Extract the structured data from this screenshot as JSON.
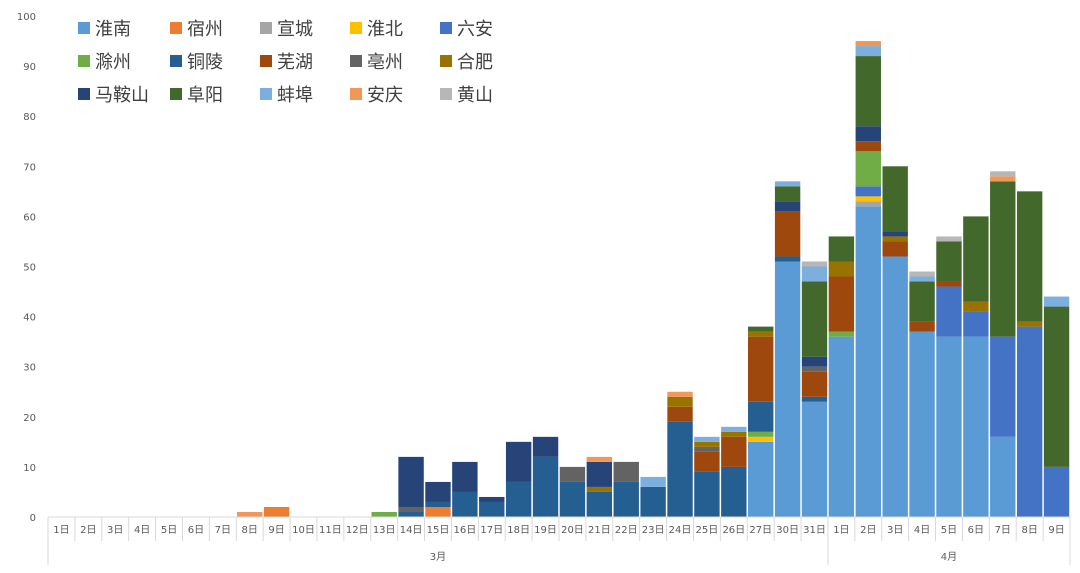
{
  "chart_data": {
    "type": "bar",
    "stacked": true,
    "title": "",
    "xlabel": "",
    "ylabel": "",
    "ylim": [
      0,
      100
    ],
    "yticks": [
      0,
      10,
      20,
      30,
      40,
      50,
      60,
      70,
      80,
      90,
      100
    ],
    "grid": false,
    "legend": "top-left",
    "categories": [
      "1日",
      "2日",
      "3日",
      "4日",
      "5日",
      "6日",
      "7日",
      "8日",
      "9日",
      "10日",
      "11日",
      "12日",
      "13日",
      "14日",
      "15日",
      "16日",
      "17日",
      "18日",
      "19日",
      "20日",
      "21日",
      "22日",
      "23日",
      "24日",
      "25日",
      "26日",
      "27日",
      "30日",
      "31日",
      "1日",
      "2日",
      "3日",
      "4日",
      "5日",
      "6日",
      "7日",
      "8日",
      "9日"
    ],
    "groups": [
      {
        "label": "3月",
        "count": 29
      },
      {
        "label": "4月",
        "count": 9
      }
    ],
    "series": [
      {
        "name": "淮南",
        "color": "#5B9BD5",
        "values": [
          0,
          0,
          0,
          0,
          0,
          0,
          0,
          0,
          0,
          0,
          0,
          0,
          0,
          0,
          0,
          0,
          0,
          0,
          0,
          0,
          0,
          0,
          0,
          0,
          0,
          0,
          15,
          51,
          23,
          36,
          62,
          52,
          37,
          36,
          36,
          16,
          0,
          0
        ]
      },
      {
        "name": "宿州",
        "color": "#ED7D31",
        "values": [
          0,
          0,
          0,
          0,
          0,
          0,
          0,
          0,
          2,
          0,
          0,
          0,
          0,
          0,
          2,
          0,
          0,
          0,
          0,
          0,
          0,
          0,
          0,
          0,
          0,
          0,
          0,
          0,
          0,
          0,
          0,
          0,
          0,
          0,
          0,
          0,
          0,
          0
        ]
      },
      {
        "name": "宣城",
        "color": "#A5A5A5",
        "values": [
          0,
          0,
          0,
          0,
          0,
          0,
          0,
          0,
          0,
          0,
          0,
          0,
          0,
          0,
          0,
          0,
          0,
          0,
          0,
          0,
          0,
          0,
          0,
          0,
          0,
          0,
          0,
          0,
          0,
          0,
          1,
          0,
          0,
          0,
          0,
          0,
          0,
          0
        ]
      },
      {
        "name": "淮北",
        "color": "#FFC000",
        "values": [
          0,
          0,
          0,
          0,
          0,
          0,
          0,
          0,
          0,
          0,
          0,
          0,
          0,
          0,
          0,
          0,
          0,
          0,
          0,
          0,
          0,
          0,
          0,
          0,
          0,
          0,
          1,
          0,
          0,
          0,
          1,
          0,
          0,
          0,
          0,
          0,
          0,
          0
        ]
      },
      {
        "name": "六安",
        "color": "#4472C4",
        "values": [
          0,
          0,
          0,
          0,
          0,
          0,
          0,
          0,
          0,
          0,
          0,
          0,
          0,
          0,
          0,
          0,
          0,
          0,
          0,
          0,
          0,
          0,
          0,
          0,
          0,
          0,
          0,
          0,
          0,
          0,
          2,
          0,
          0,
          10,
          5,
          20,
          38,
          10
        ]
      },
      {
        "name": "滁州",
        "color": "#70AD47",
        "values": [
          0,
          0,
          0,
          0,
          0,
          0,
          0,
          0,
          0,
          0,
          0,
          0,
          1,
          0,
          0,
          0,
          0,
          0,
          0,
          0,
          0,
          0,
          0,
          0,
          0,
          0,
          1,
          0,
          0,
          1,
          7,
          0,
          0,
          0,
          0,
          0,
          0,
          0
        ]
      },
      {
        "name": "铜陵",
        "color": "#255E91",
        "values": [
          0,
          0,
          0,
          0,
          0,
          0,
          0,
          0,
          0,
          0,
          0,
          0,
          0,
          1,
          1,
          5,
          3,
          7,
          12,
          7,
          5,
          7,
          6,
          19,
          9,
          10,
          6,
          1,
          1,
          0,
          0,
          0,
          0,
          0,
          0,
          0,
          0,
          0
        ]
      },
      {
        "name": "芜湖",
        "color": "#9E480E",
        "values": [
          0,
          0,
          0,
          0,
          0,
          0,
          0,
          0,
          0,
          0,
          0,
          0,
          0,
          0,
          0,
          0,
          0,
          0,
          0,
          0,
          0,
          0,
          0,
          3,
          4,
          6,
          13,
          9,
          5,
          11,
          2,
          3,
          2,
          1,
          0,
          0,
          0,
          0
        ]
      },
      {
        "name": "亳州",
        "color": "#636363",
        "values": [
          0,
          0,
          0,
          0,
          0,
          0,
          0,
          0,
          0,
          0,
          0,
          0,
          0,
          1,
          0,
          0,
          0,
          0,
          0,
          3,
          0,
          4,
          0,
          0,
          1,
          0,
          0,
          0,
          1,
          0,
          0,
          0,
          0,
          0,
          0,
          0,
          0,
          0
        ]
      },
      {
        "name": "合肥",
        "color": "#997300",
        "values": [
          0,
          0,
          0,
          0,
          0,
          0,
          0,
          0,
          0,
          0,
          0,
          0,
          0,
          0,
          0,
          0,
          0,
          0,
          0,
          0,
          1,
          0,
          0,
          2,
          1,
          1,
          1,
          0,
          0,
          3,
          0,
          1,
          0,
          0,
          2,
          0,
          1,
          0
        ]
      },
      {
        "name": "马鞍山",
        "color": "#264478",
        "values": [
          0,
          0,
          0,
          0,
          0,
          0,
          0,
          0,
          0,
          0,
          0,
          0,
          0,
          10,
          4,
          6,
          1,
          8,
          4,
          0,
          5,
          0,
          0,
          0,
          0,
          0,
          0,
          2,
          2,
          0,
          3,
          1,
          0,
          0,
          0,
          0,
          0,
          0
        ]
      },
      {
        "name": "阜阳",
        "color": "#43682B",
        "values": [
          0,
          0,
          0,
          0,
          0,
          0,
          0,
          0,
          0,
          0,
          0,
          0,
          0,
          0,
          0,
          0,
          0,
          0,
          0,
          0,
          0,
          0,
          0,
          0,
          0,
          0,
          1,
          3,
          15,
          5,
          14,
          13,
          8,
          8,
          17,
          31,
          26,
          32
        ]
      },
      {
        "name": "蚌埠",
        "color": "#7CAFDD",
        "values": [
          0,
          0,
          0,
          0,
          0,
          0,
          0,
          0,
          0,
          0,
          0,
          0,
          0,
          0,
          0,
          0,
          0,
          0,
          0,
          0,
          0,
          0,
          2,
          0,
          1,
          1,
          0,
          1,
          3,
          0,
          2,
          0,
          1,
          0,
          0,
          0,
          0,
          2
        ]
      },
      {
        "name": "安庆",
        "color": "#F1975A",
        "values": [
          0,
          0,
          0,
          0,
          0,
          0,
          0,
          1,
          0,
          0,
          0,
          0,
          0,
          0,
          0,
          0,
          0,
          0,
          0,
          0,
          1,
          0,
          0,
          1,
          0,
          0,
          0,
          0,
          0,
          0,
          1,
          0,
          0,
          0,
          0,
          1,
          0,
          0
        ]
      },
      {
        "name": "黄山",
        "color": "#B7B7B7",
        "values": [
          0,
          0,
          0,
          0,
          0,
          0,
          0,
          0,
          0,
          0,
          0,
          0,
          0,
          0,
          0,
          0,
          0,
          0,
          0,
          0,
          0,
          0,
          0,
          0,
          0,
          0,
          0,
          0,
          1,
          0,
          0,
          0,
          1,
          1,
          0,
          1,
          0,
          0
        ]
      }
    ]
  }
}
